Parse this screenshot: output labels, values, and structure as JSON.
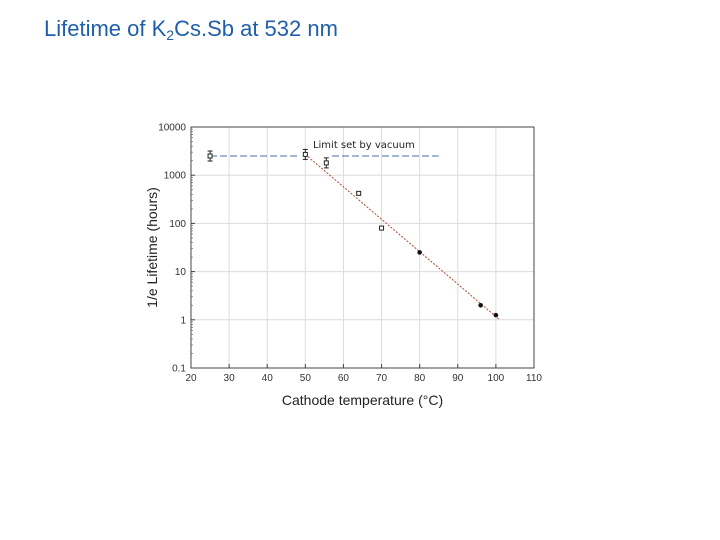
{
  "slide": {
    "title_prefix": "Lifetime of K",
    "title_sub": "2",
    "title_suffix": "Cs.Sb at 532 nm"
  },
  "chart_data": {
    "type": "scatter",
    "title": "",
    "xlabel": "Cathode temperature (°C)",
    "ylabel": "1/e Lifetime (hours)",
    "xlim": [
      20,
      110
    ],
    "ylim": [
      0.1,
      10000
    ],
    "yscale": "log",
    "x_ticks": [
      "20",
      "30",
      "40",
      "50",
      "60",
      "70",
      "80",
      "90",
      "100",
      "110"
    ],
    "y_ticks": [
      "0.1",
      "1",
      "10",
      "100",
      "1000",
      "10000"
    ],
    "grid": true,
    "open_points": [
      {
        "x": 25,
        "y": 2500,
        "error": true
      },
      {
        "x": 50,
        "y": 2700,
        "error": true
      },
      {
        "x": 55.5,
        "y": 1800,
        "error": true
      },
      {
        "x": 64,
        "y": 420
      },
      {
        "x": 70,
        "y": 80
      }
    ],
    "filled_points": [
      {
        "x": 80,
        "y": 25
      },
      {
        "x": 96,
        "y": 2
      },
      {
        "x": 100,
        "y": 1.25
      }
    ],
    "fit_line": {
      "x": [
        50,
        101
      ],
      "y": [
        2700,
        1.0
      ]
    },
    "limit_line": {
      "y": 2500,
      "segments": [
        [
          25,
          48
        ],
        [
          57,
          85
        ]
      ],
      "label": "Limit set by vacuum",
      "label_x": 52
    }
  }
}
